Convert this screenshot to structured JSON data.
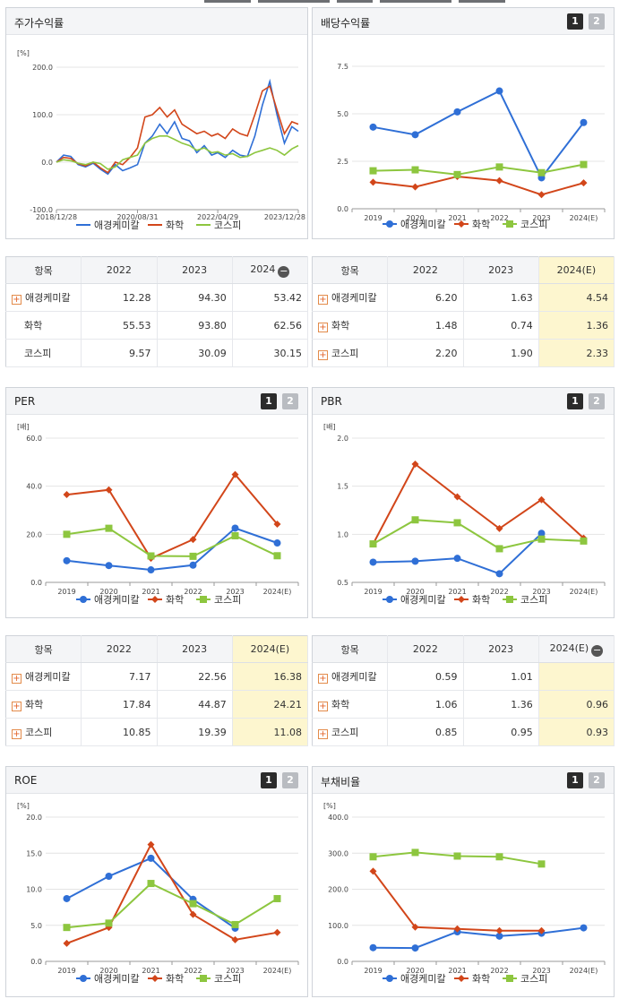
{
  "top_tabs": [
    "",
    "",
    "",
    "",
    ""
  ],
  "panels": {
    "price": {
      "title": "주가수익률",
      "unit": "[%]",
      "legend": [
        "애경케미칼",
        "화학",
        "코스피"
      ]
    },
    "dividend": {
      "title": "배당수익률",
      "page1": "1",
      "page2": "2",
      "unit": "",
      "legend": [
        "애경케미칼",
        "화학",
        "코스피"
      ]
    },
    "per": {
      "title": "PER",
      "page1": "1",
      "page2": "2",
      "unit": "[배]",
      "legend": [
        "애경케미칼",
        "화학",
        "코스피"
      ]
    },
    "pbr": {
      "title": "PBR",
      "page1": "1",
      "page2": "2",
      "unit": "[배]",
      "legend": [
        "애경케미칼",
        "화학",
        "코스피"
      ]
    },
    "roe": {
      "title": "ROE",
      "page1": "1",
      "page2": "2",
      "unit": "[%]",
      "legend": [
        "애경케미칼",
        "화학",
        "코스피"
      ]
    },
    "debt": {
      "title": "부채비율",
      "page1": "1",
      "page2": "2",
      "unit": "[%]",
      "legend": [
        "애경케미칼",
        "화학",
        "코스피"
      ]
    }
  },
  "tables": {
    "price": {
      "headers": [
        "항목",
        "2022",
        "2023",
        "2024"
      ],
      "rows": [
        {
          "name": "애경케미칼",
          "plus": true,
          "values": [
            "12.28",
            "94.30",
            "53.42"
          ]
        },
        {
          "name": "화학",
          "plus": false,
          "values": [
            "55.53",
            "93.80",
            "62.56"
          ]
        },
        {
          "name": "코스피",
          "plus": false,
          "values": [
            "9.57",
            "30.09",
            "30.15"
          ]
        }
      ]
    },
    "dividend": {
      "headers": [
        "항목",
        "2022",
        "2023",
        "2024(E)"
      ],
      "rows": [
        {
          "name": "애경케미칼",
          "plus": true,
          "values": [
            "6.20",
            "1.63",
            "4.54"
          ]
        },
        {
          "name": "화학",
          "plus": true,
          "values": [
            "1.48",
            "0.74",
            "1.36"
          ]
        },
        {
          "name": "코스피",
          "plus": true,
          "values": [
            "2.20",
            "1.90",
            "2.33"
          ]
        }
      ]
    },
    "per": {
      "headers": [
        "항목",
        "2022",
        "2023",
        "2024(E)"
      ],
      "rows": [
        {
          "name": "애경케미칼",
          "plus": true,
          "values": [
            "7.17",
            "22.56",
            "16.38"
          ]
        },
        {
          "name": "화학",
          "plus": true,
          "values": [
            "17.84",
            "44.87",
            "24.21"
          ]
        },
        {
          "name": "코스피",
          "plus": true,
          "values": [
            "10.85",
            "19.39",
            "11.08"
          ]
        }
      ]
    },
    "pbr": {
      "headers": [
        "항목",
        "2022",
        "2023",
        "2024(E)"
      ],
      "rows": [
        {
          "name": "애경케미칼",
          "plus": true,
          "values": [
            "0.59",
            "1.01",
            ""
          ]
        },
        {
          "name": "화학",
          "plus": true,
          "values": [
            "1.06",
            "1.36",
            "0.96"
          ]
        },
        {
          "name": "코스피",
          "plus": true,
          "values": [
            "0.85",
            "0.95",
            "0.93"
          ]
        }
      ]
    }
  },
  "colors": {
    "company": "#2f6fd6",
    "industry": "#d2461a",
    "kospi": "#8dc63f"
  },
  "chart_data": [
    {
      "id": "price",
      "type": "line",
      "ylim": [
        -100,
        200
      ],
      "yticks": [
        "200.0",
        "100.0",
        "0.0",
        "-100.0"
      ],
      "xtick_labels": [
        "2018/12/28",
        "2020/08/31",
        "2022/04/29",
        "2023/12/28"
      ],
      "xlim": [
        "2018-12-28",
        "2023-12-28"
      ],
      "x": [
        "2018-12-28",
        "2019-02-20",
        "2019-04-15",
        "2019-06-10",
        "2019-08-05",
        "2019-10-01",
        "2019-11-25",
        "2020-01-20",
        "2020-03-16",
        "2020-05-11",
        "2020-07-06",
        "2020-08-31",
        "2020-10-26",
        "2020-12-21",
        "2021-02-15",
        "2021-04-12",
        "2021-06-07",
        "2021-08-02",
        "2021-09-27",
        "2021-11-22",
        "2022-01-17",
        "2022-03-14",
        "2022-04-29",
        "2022-06-24",
        "2022-08-19",
        "2022-10-14",
        "2022-12-09",
        "2023-02-03",
        "2023-04-01",
        "2023-05-27",
        "2023-07-20",
        "2023-09-14",
        "2023-11-09",
        "2023-12-28"
      ],
      "series": [
        {
          "name": "애경케미칼",
          "values": [
            0,
            15,
            12,
            -5,
            -10,
            -2,
            -15,
            -25,
            -5,
            -18,
            -12,
            -5,
            40,
            55,
            80,
            60,
            85,
            50,
            45,
            20,
            35,
            15,
            20,
            10,
            25,
            15,
            12,
            55,
            120,
            170,
            100,
            40,
            75,
            65
          ]
        },
        {
          "name": "화학",
          "values": [
            0,
            10,
            8,
            -3,
            -8,
            0,
            -12,
            -22,
            0,
            -5,
            10,
            30,
            95,
            100,
            115,
            95,
            110,
            80,
            70,
            60,
            65,
            55,
            60,
            50,
            70,
            60,
            55,
            100,
            150,
            160,
            110,
            60,
            85,
            80
          ]
        },
        {
          "name": "코스피",
          "values": [
            0,
            5,
            3,
            -2,
            -5,
            0,
            -3,
            -15,
            -10,
            5,
            10,
            15,
            40,
            50,
            55,
            55,
            48,
            40,
            35,
            25,
            30,
            20,
            22,
            15,
            18,
            10,
            12,
            20,
            25,
            30,
            25,
            15,
            28,
            35
          ]
        }
      ]
    },
    {
      "id": "dividend",
      "type": "line",
      "categories": [
        "2019",
        "2020",
        "2021",
        "2022",
        "2023",
        "2024(E)"
      ],
      "ylim": [
        0,
        7.5
      ],
      "yticks": [
        "7.5",
        "5.0",
        "2.5",
        "0.0"
      ],
      "series": [
        {
          "name": "애경케미칼",
          "values": [
            4.3,
            3.9,
            5.1,
            6.2,
            1.63,
            4.54
          ]
        },
        {
          "name": "화학",
          "values": [
            1.4,
            1.15,
            1.7,
            1.48,
            0.74,
            1.36
          ]
        },
        {
          "name": "코스피",
          "values": [
            2.0,
            2.05,
            1.8,
            2.2,
            1.9,
            2.33
          ]
        }
      ]
    },
    {
      "id": "per",
      "type": "line",
      "categories": [
        "2019",
        "2020",
        "2021",
        "2022",
        "2023",
        "2024(E)"
      ],
      "ylim": [
        0,
        60
      ],
      "yticks": [
        "60.0",
        "40.0",
        "20.0",
        "0.0"
      ],
      "series": [
        {
          "name": "애경케미칼",
          "values": [
            9,
            7,
            5.2,
            7.17,
            22.56,
            16.38
          ]
        },
        {
          "name": "화학",
          "values": [
            36.5,
            38.5,
            10,
            17.84,
            44.87,
            24.21
          ]
        },
        {
          "name": "코스피",
          "values": [
            20,
            22.5,
            11,
            10.85,
            19.39,
            11.08
          ]
        }
      ]
    },
    {
      "id": "pbr",
      "type": "line",
      "categories": [
        "2019",
        "2020",
        "2021",
        "2022",
        "2023",
        "2024(E)"
      ],
      "ylim": [
        0.5,
        2.0
      ],
      "yticks": [
        "2.0",
        "1.5",
        "1.0",
        "0.5"
      ],
      "series": [
        {
          "name": "애경케미칼",
          "values": [
            0.71,
            0.72,
            0.75,
            0.59,
            1.01,
            null
          ]
        },
        {
          "name": "화학",
          "values": [
            0.9,
            1.73,
            1.39,
            1.06,
            1.36,
            0.96
          ]
        },
        {
          "name": "코스피",
          "values": [
            0.9,
            1.15,
            1.12,
            0.85,
            0.95,
            0.93
          ]
        }
      ]
    },
    {
      "id": "roe",
      "type": "line",
      "categories": [
        "2019",
        "2020",
        "2021",
        "2022",
        "2023",
        "2024(E)"
      ],
      "ylim": [
        0,
        20
      ],
      "yticks": [
        "20.0",
        "15.0",
        "10.0",
        "5.0",
        "0.0"
      ],
      "series": [
        {
          "name": "애경케미칼",
          "values": [
            8.7,
            11.8,
            14.3,
            8.6,
            4.6,
            null
          ]
        },
        {
          "name": "화학",
          "values": [
            2.5,
            4.7,
            16.2,
            6.5,
            3.0,
            4.0
          ]
        },
        {
          "name": "코스피",
          "values": [
            4.7,
            5.3,
            10.8,
            8.0,
            5.1,
            8.7
          ]
        }
      ]
    },
    {
      "id": "debt",
      "type": "line",
      "categories": [
        "2019",
        "2020",
        "2021",
        "2022",
        "2023",
        "2024(E)"
      ],
      "ylim": [
        0,
        400
      ],
      "yticks": [
        "400.0",
        "300.0",
        "200.0",
        "100.0",
        "0.0"
      ],
      "series": [
        {
          "name": "애경케미칼",
          "values": [
            38,
            37,
            82,
            70,
            78,
            93
          ]
        },
        {
          "name": "화학",
          "values": [
            250,
            95,
            90,
            85,
            85,
            null
          ]
        },
        {
          "name": "코스피",
          "values": [
            290,
            302,
            292,
            290,
            270,
            null
          ]
        }
      ]
    }
  ]
}
